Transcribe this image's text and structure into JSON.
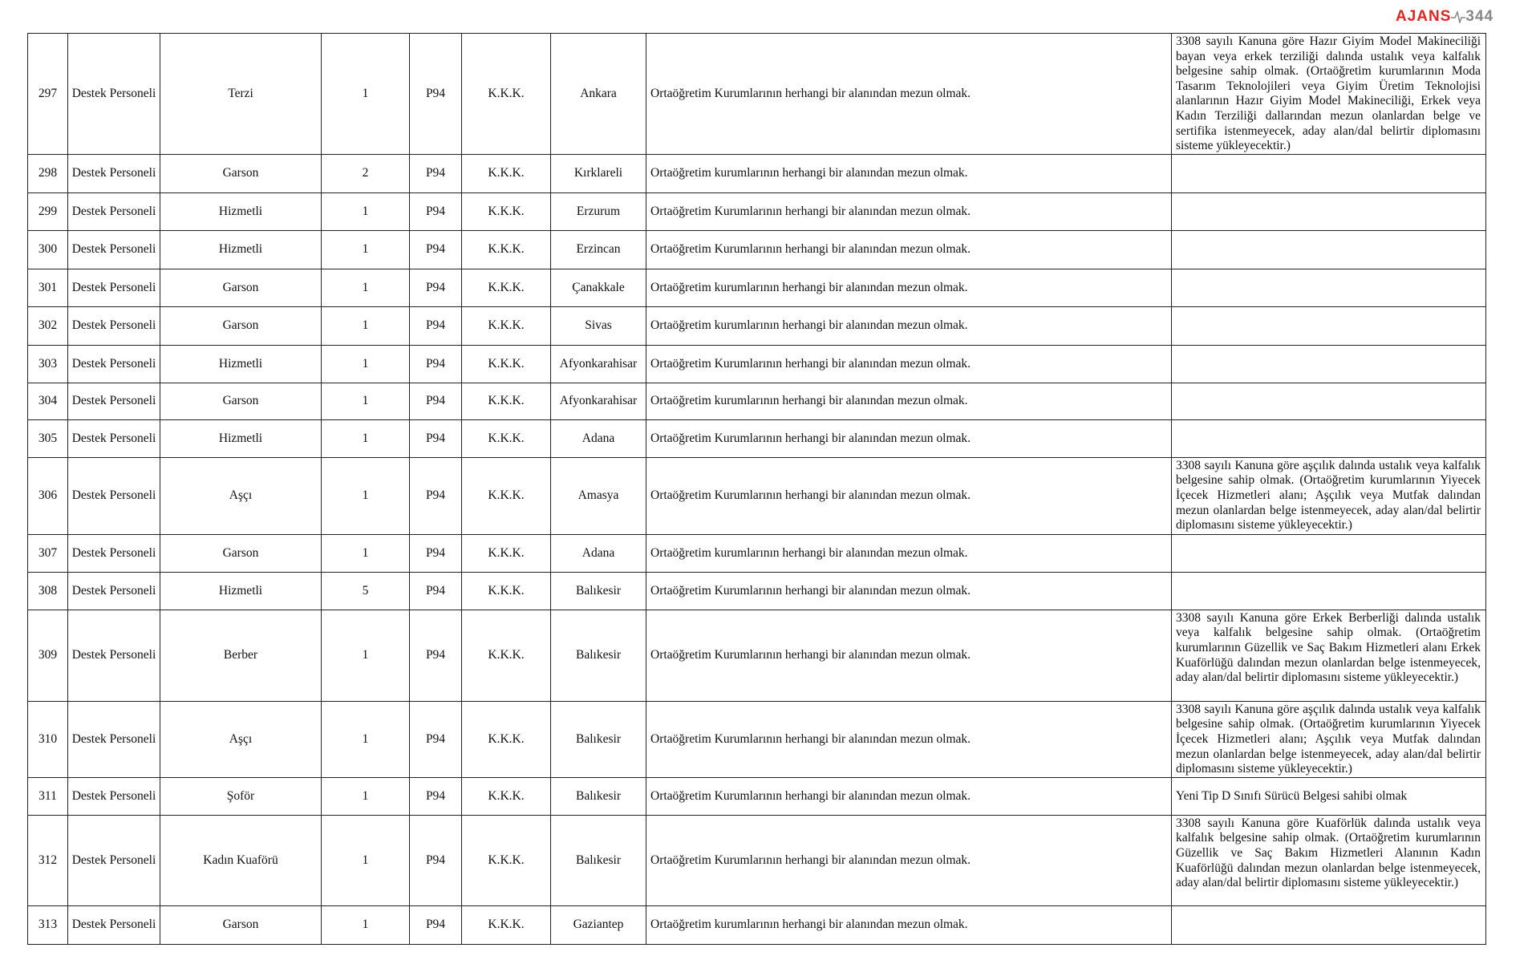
{
  "watermark": {
    "text_left": "AJANS",
    "text_right": "344",
    "colors": {
      "left": "#e52420",
      "right": "#888888"
    }
  },
  "rows": [
    {
      "no": "297",
      "category": "Destek Personeli",
      "position": "Terzi",
      "count": "1",
      "code": "P94",
      "unit": "K.K.K.",
      "city": "Ankara",
      "requirement": "Ortaöğretim Kurumlarının herhangi bir alanından mezun olmak.",
      "note": "3308 sayılı Kanuna göre Hazır Giyim Model Makineciliği bayan veya erkek terziliği dalında ustalık veya kalfalık belgesine sahip olmak. (Ortaöğretim kurumlarının Moda Tasarım Teknolojileri veya Giyim Üretim Teknolojisi alanlarının Hazır Giyim Model Makineciliği, Erkek veya Kadın Terziliği dallarından mezun olanlardan belge ve sertifika istenmeyecek, aday alan/dal belirtir diplomasını sisteme yükleyecektir.)"
    },
    {
      "no": "298",
      "category": "Destek Personeli",
      "position": "Garson",
      "count": "2",
      "code": "P94",
      "unit": "K.K.K.",
      "city": "Kırklareli",
      "requirement": "Ortaöğretim kurumlarının herhangi bir alanından mezun olmak.",
      "note": ""
    },
    {
      "no": "299",
      "category": "Destek Personeli",
      "position": "Hizmetli",
      "count": "1",
      "code": "P94",
      "unit": "K.K.K.",
      "city": "Erzurum",
      "requirement": "Ortaöğretim Kurumlarının herhangi bir alanından mezun olmak.",
      "note": ""
    },
    {
      "no": "300",
      "category": "Destek Personeli",
      "position": "Hizmetli",
      "count": "1",
      "code": "P94",
      "unit": "K.K.K.",
      "city": "Erzincan",
      "requirement": "Ortaöğretim Kurumlarının herhangi bir alanından mezun olmak.",
      "note": ""
    },
    {
      "no": "301",
      "category": "Destek Personeli",
      "position": "Garson",
      "count": "1",
      "code": "P94",
      "unit": "K.K.K.",
      "city": "Çanakkale",
      "requirement": "Ortaöğretim kurumlarının herhangi bir alanından mezun olmak.",
      "note": ""
    },
    {
      "no": "302",
      "category": "Destek Personeli",
      "position": "Garson",
      "count": "1",
      "code": "P94",
      "unit": "K.K.K.",
      "city": "Sivas",
      "requirement": "Ortaöğretim kurumlarının herhangi bir alanından mezun olmak.",
      "note": ""
    },
    {
      "no": "303",
      "category": "Destek Personeli",
      "position": "Hizmetli",
      "count": "1",
      "code": "P94",
      "unit": "K.K.K.",
      "city": "Afyonkarahisar",
      "requirement": "Ortaöğretim Kurumlarının herhangi bir alanından mezun olmak.",
      "note": ""
    },
    {
      "no": "304",
      "category": "Destek Personeli",
      "position": "Garson",
      "count": "1",
      "code": "P94",
      "unit": "K.K.K.",
      "city": "Afyonkarahisar",
      "requirement": "Ortaöğretim kurumlarının herhangi bir alanından mezun olmak.",
      "note": ""
    },
    {
      "no": "305",
      "category": "Destek Personeli",
      "position": "Hizmetli",
      "count": "1",
      "code": "P94",
      "unit": "K.K.K.",
      "city": "Adana",
      "requirement": "Ortaöğretim Kurumlarının herhangi bir alanından mezun olmak.",
      "note": ""
    },
    {
      "no": "306",
      "category": "Destek Personeli",
      "position": "Aşçı",
      "count": "1",
      "code": "P94",
      "unit": "K.K.K.",
      "city": "Amasya",
      "requirement": "Ortaöğretim Kurumlarının herhangi bir alanından mezun olmak.",
      "note": "3308 sayılı Kanuna göre aşçılık dalında ustalık veya kalfalık belgesine sahip olmak. (Ortaöğretim kurumlarının Yiyecek İçecek Hizmetleri alanı; Aşçılık veya Mutfak dalından mezun olanlardan belge istenmeyecek, aday alan/dal belirtir diplomasını sisteme yükleyecektir.)"
    },
    {
      "no": "307",
      "category": "Destek Personeli",
      "position": "Garson",
      "count": "1",
      "code": "P94",
      "unit": "K.K.K.",
      "city": "Adana",
      "requirement": "Ortaöğretim kurumlarının herhangi bir alanından mezun olmak.",
      "note": ""
    },
    {
      "no": "308",
      "category": "Destek Personeli",
      "position": "Hizmetli",
      "count": "5",
      "code": "P94",
      "unit": "K.K.K.",
      "city": "Balıkesir",
      "requirement": "Ortaöğretim Kurumlarının herhangi bir alanından mezun olmak.",
      "note": ""
    },
    {
      "no": "309",
      "category": "Destek Personeli",
      "position": "Berber",
      "count": "1",
      "code": "P94",
      "unit": "K.K.K.",
      "city": "Balıkesir",
      "requirement": "Ortaöğretim Kurumlarının herhangi bir alanından mezun olmak.",
      "note": "3308 sayılı Kanuna göre Erkek Berberliği dalında ustalık veya kalfalık belgesine sahip olmak. (Ortaöğretim kurumlarının Güzellik ve Saç Bakım Hizmetleri alanı Erkek Kuaförlüğü dalından mezun olanlardan belge istenmeyecek, aday alan/dal belirtir diplomasını sisteme yükleyecektir.)"
    },
    {
      "no": "310",
      "category": "Destek Personeli",
      "position": "Aşçı",
      "count": "1",
      "code": "P94",
      "unit": "K.K.K.",
      "city": "Balıkesir",
      "requirement": "Ortaöğretim Kurumlarının herhangi bir alanından mezun olmak.",
      "note": "3308 sayılı Kanuna göre aşçılık dalında ustalık veya kalfalık belgesine sahip olmak. (Ortaöğretim kurumlarının Yiyecek İçecek Hizmetleri alanı; Aşçılık veya Mutfak dalından mezun olanlardan belge istenmeyecek, aday alan/dal belirtir diplomasını sisteme yükleyecektir.)"
    },
    {
      "no": "311",
      "category": "Destek Personeli",
      "position": "Şoför",
      "count": "1",
      "code": "P94",
      "unit": "K.K.K.",
      "city": "Balıkesir",
      "requirement": "Ortaöğretim Kurumlarının herhangi bir alanından mezun olmak.",
      "note": "Yeni Tip D Sınıfı Sürücü Belgesi sahibi olmak"
    },
    {
      "no": "312",
      "category": "Destek Personeli",
      "position": "Kadın Kuaförü",
      "count": "1",
      "code": "P94",
      "unit": "K.K.K.",
      "city": "Balıkesir",
      "requirement": "Ortaöğretim Kurumlarının herhangi bir alanından mezun olmak.",
      "note": "3308 sayılı Kanuna göre Kuaförlük dalında ustalık veya kalfalık belgesine sahip olmak. (Ortaöğretim kurumlarının Güzellik ve Saç Bakım Hizmetleri Alanının Kadın Kuaförlüğü dalından mezun olanlardan belge istenmeyecek, aday alan/dal belirtir diplomasını sisteme yükleyecektir.)"
    },
    {
      "no": "313",
      "category": "Destek Personeli",
      "position": "Garson",
      "count": "1",
      "code": "P94",
      "unit": "K.K.K.",
      "city": "Gaziantep",
      "requirement": "Ortaöğretim kurumlarının herhangi bir alanından mezun olmak.",
      "note": ""
    }
  ]
}
